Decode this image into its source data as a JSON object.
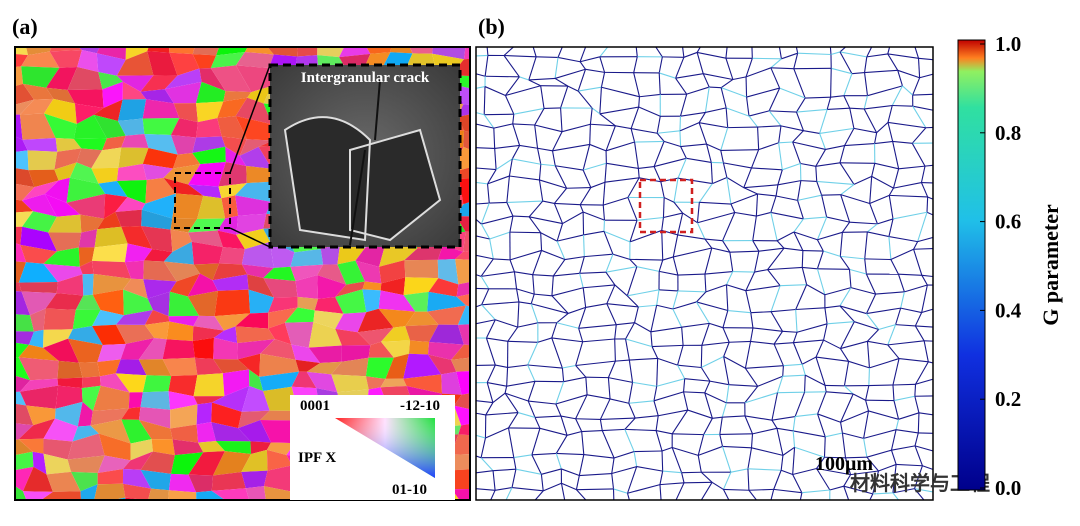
{
  "panels": [
    {
      "label": "(a)",
      "inset": {
        "text": "Intergranular crack"
      },
      "ipf": {
        "title": "IPF X",
        "corners": [
          "0001",
          "-12-10",
          "01-10"
        ]
      }
    },
    {
      "label": "(b)",
      "scale_bar": "100μm"
    }
  ],
  "watermark": "材料科学与工程",
  "colorbar": {
    "label": "G parameter",
    "lim": [
      0,
      1
    ],
    "ticks": [
      {
        "value": 0,
        "label": "0.0"
      },
      {
        "value": 0.2,
        "label": "0.2"
      },
      {
        "value": 0.4,
        "label": "0.4"
      },
      {
        "value": 0.6,
        "label": "0.6"
      },
      {
        "value": 0.8,
        "label": "0.8"
      },
      {
        "value": 1,
        "label": "1.0"
      }
    ]
  }
}
